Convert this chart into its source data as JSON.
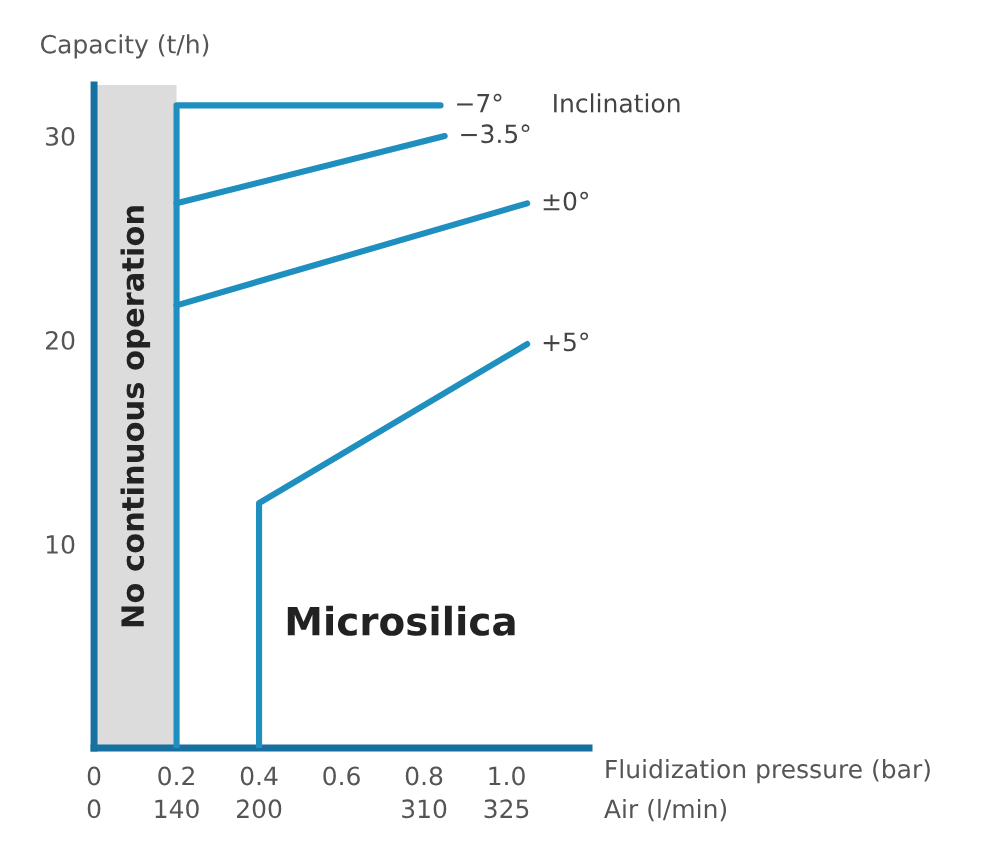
{
  "chart_data": {
    "type": "line",
    "ylabel": "Capacity (t/h)",
    "xlabel": "Fluidization pressure (bar)",
    "x2label": "Air (l/min)",
    "series": [
      {
        "name": "−7°",
        "color": "#1f8fc0",
        "x": [
          0.2,
          0.2,
          0.84
        ],
        "values": [
          0,
          31.5,
          31.5
        ]
      },
      {
        "name": "−3.5°",
        "color": "#1f8fc0",
        "x": [
          0.2,
          0.85
        ],
        "values": [
          26.7,
          30.0
        ]
      },
      {
        "name": "±0°",
        "color": "#1f8fc0",
        "x": [
          0.2,
          1.05
        ],
        "values": [
          21.7,
          26.7
        ]
      },
      {
        "name": "+5°",
        "color": "#1f8fc0",
        "x": [
          0.4,
          0.4,
          1.05
        ],
        "values": [
          0,
          12.0,
          19.8
        ]
      }
    ],
    "xlim": [
      0,
      1.2
    ],
    "ylim": [
      0,
      32.5
    ],
    "xticks": [
      0,
      0.2,
      0.4,
      0.6,
      0.8,
      {
        "value": 1.0,
        "label": "1.0"
      }
    ],
    "yticks": [
      10,
      20,
      30
    ],
    "bands": [
      {
        "axis": "x",
        "from": 0,
        "to": 0.2,
        "label": "No continuous operation",
        "color": "#dcdcdc"
      }
    ],
    "annotations": [
      "Inclination",
      "Microsilica",
      "0",
      "140",
      "200",
      "310",
      "325"
    ],
    "grid": false,
    "legend": false,
    "marker": "none",
    "line_style": "solid"
  }
}
